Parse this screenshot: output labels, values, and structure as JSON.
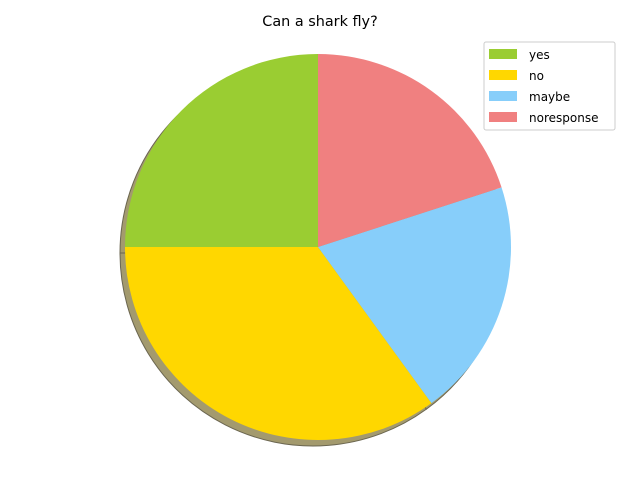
{
  "chart_data": {
    "type": "pie",
    "title": "Can a shark fly?",
    "labels": [
      "yes",
      "no",
      "maybe",
      "noresponse"
    ],
    "values": [
      25,
      35,
      20,
      20
    ],
    "colors": [
      "#9acd32",
      "#ffd700",
      "#87cefa",
      "#f08080"
    ],
    "start_angle_deg": 90,
    "direction": "counterclockwise",
    "shadow": true,
    "legend_position": "top-right"
  }
}
